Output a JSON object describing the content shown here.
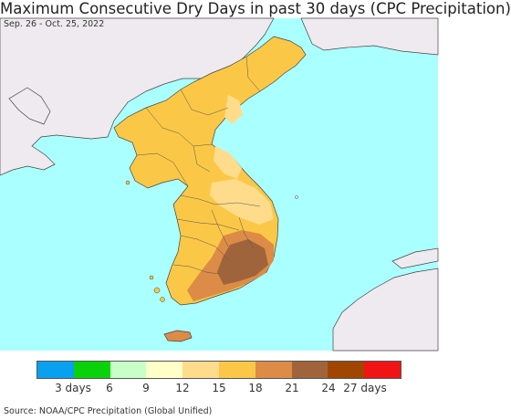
{
  "title": "Maximum Consecutive Dry Days in past 30 days (CPC Precipitation)",
  "date_range": "Sep. 26 - Oct. 25, 2022",
  "source": "Source: NOAA/CPC Precipitation (Global Unified)",
  "colors": {
    "ocean": "#aaffff",
    "land_outside": "#eeeaef",
    "border": "#444444"
  },
  "legend": {
    "colors": [
      "#0aa0f0",
      "#0ad20a",
      "#c8ffc8",
      "#ffffc8",
      "#ffdc8c",
      "#fac846",
      "#dc8c46",
      "#a0643c",
      "#a04600",
      "#f01414"
    ],
    "tick_labels": [
      "3 days",
      "6",
      "9",
      "12",
      "15",
      "18",
      "21",
      "24",
      "27 days"
    ]
  }
}
